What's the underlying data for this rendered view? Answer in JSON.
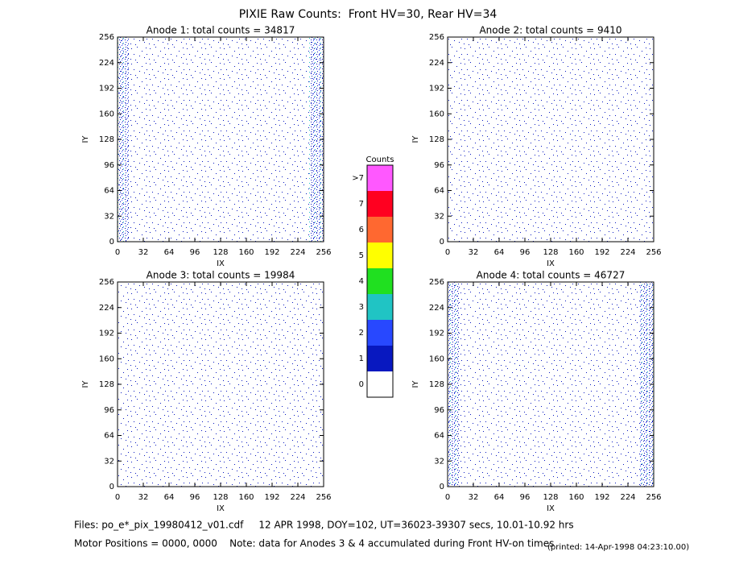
{
  "title": "PIXIE Raw Counts:  Front HV=30, Rear HV=34",
  "chart_data": [
    {
      "type": "heatmap",
      "title": "Anode 1: total counts = 34817",
      "xlabel": "IX",
      "ylabel": "IY",
      "xlim": [
        0,
        256
      ],
      "ylim": [
        0,
        256
      ],
      "xticks": [
        0,
        32,
        64,
        96,
        128,
        160,
        192,
        224,
        256
      ],
      "yticks": [
        0,
        32,
        64,
        96,
        128,
        160,
        192,
        224,
        256
      ]
    },
    {
      "type": "heatmap",
      "title": "Anode 2: total counts = 9410",
      "xlabel": "IX",
      "ylabel": "IY",
      "xlim": [
        0,
        256
      ],
      "ylim": [
        0,
        256
      ],
      "xticks": [
        0,
        32,
        64,
        96,
        128,
        160,
        192,
        224,
        256
      ],
      "yticks": [
        0,
        32,
        64,
        96,
        128,
        160,
        192,
        224,
        256
      ]
    },
    {
      "type": "heatmap",
      "title": "Anode 3: total counts = 19984",
      "xlabel": "IX",
      "ylabel": "IY",
      "xlim": [
        0,
        256
      ],
      "ylim": [
        0,
        256
      ],
      "xticks": [
        0,
        32,
        64,
        96,
        128,
        160,
        192,
        224,
        256
      ],
      "yticks": [
        0,
        32,
        64,
        96,
        128,
        160,
        192,
        224,
        256
      ]
    },
    {
      "type": "heatmap",
      "title": "Anode 4: total counts = 46727",
      "xlabel": "IX",
      "ylabel": "IY",
      "xlim": [
        0,
        256
      ],
      "ylim": [
        0,
        256
      ],
      "xticks": [
        0,
        32,
        64,
        96,
        128,
        160,
        192,
        224,
        256
      ],
      "yticks": [
        0,
        32,
        64,
        96,
        128,
        160,
        192,
        224,
        256
      ]
    }
  ],
  "colorbar": {
    "title": "Counts",
    "ticks": [
      0,
      1,
      2,
      3,
      4,
      5,
      6,
      7,
      {
        "value": 8,
        "label": ">7"
      }
    ],
    "colors": [
      "#ffffff",
      "#0818c0",
      "#2848ff",
      "#20c4c4",
      "#20e020",
      "#ffff00",
      "#ff6830",
      "#ff0020",
      "#ff58ff"
    ]
  },
  "footer": [
    "Files: po_e*_pix_19980412_v01.cdf     12 APR 1998, DOY=102, UT=36023-39307 secs, 10.01-10.92 hrs",
    "Motor Positions = 0000, 0000    Note: data for Anodes 3 & 4 accumulated during Front HV-on times",
    "(printed: 14-Apr-1998 04:23:10.00)"
  ]
}
